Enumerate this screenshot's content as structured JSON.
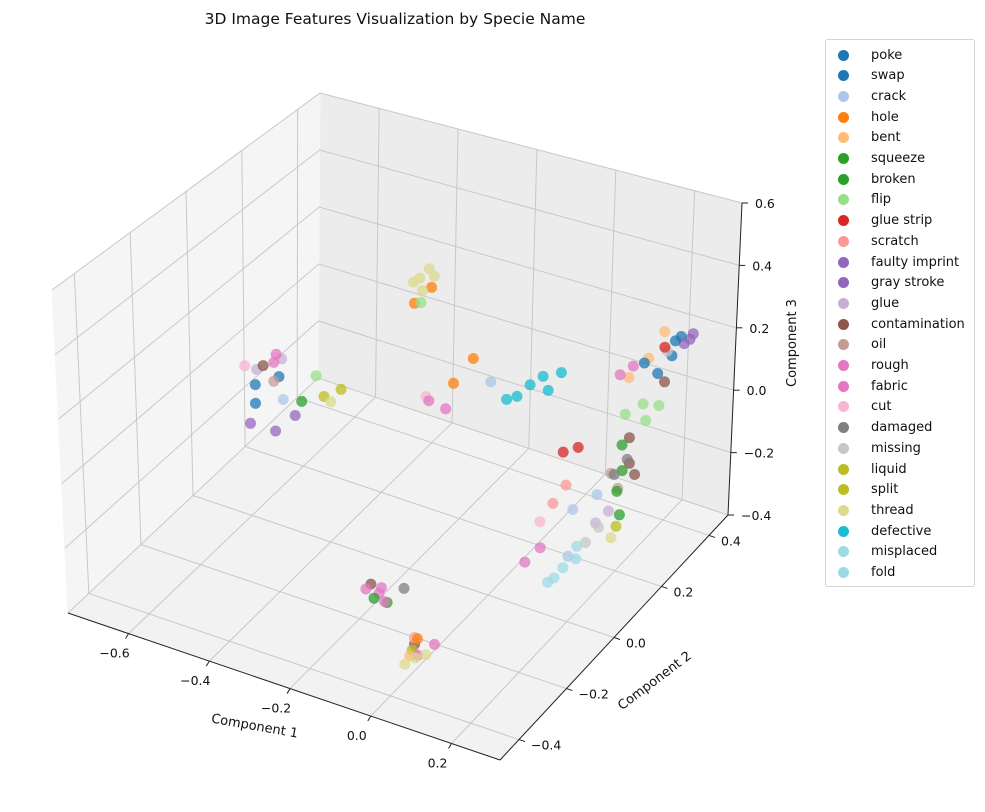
{
  "chart_data": {
    "type": "scatter",
    "dimensions": 3,
    "title": "3D Image Features Visualization by Specie Name",
    "xlabel": "Component 1",
    "ylabel": "Component 2",
    "zlabel": "Component 3",
    "xlim": [
      -0.75,
      0.32
    ],
    "ylim": [
      -0.48,
      0.48
    ],
    "zlim": [
      -0.4,
      0.6
    ],
    "x_ticks": [
      -0.6,
      -0.4,
      -0.2,
      0.0,
      0.2
    ],
    "y_ticks": [
      -0.4,
      -0.2,
      0.0,
      0.2,
      0.4
    ],
    "z_ticks": [
      -0.4,
      -0.2,
      0.0,
      0.2,
      0.4,
      0.6
    ],
    "x_tick_labels": [
      "−0.6",
      "−0.4",
      "−0.2",
      "0.0",
      "0.2"
    ],
    "y_tick_labels": [
      "−0.4",
      "−0.2",
      "0.0",
      "0.2",
      "0.4"
    ],
    "z_tick_labels": [
      "−0.4",
      "−0.2",
      "0.0",
      "0.2",
      "0.4",
      "0.6"
    ],
    "grid": true,
    "legend_position": "right, outside plot",
    "series": [
      {
        "name": "poke",
        "color": "#1f77b4",
        "points": [
          [
            -0.62,
            0.05,
            -0.02
          ],
          [
            -0.58,
            0.08,
            0.0
          ],
          [
            0.22,
            0.38,
            0.15
          ],
          [
            0.24,
            0.36,
            0.22
          ],
          [
            0.2,
            0.3,
            0.18
          ]
        ]
      },
      {
        "name": "swap",
        "color": "#1f77b4",
        "points": [
          [
            -0.6,
            0.02,
            -0.05
          ],
          [
            0.23,
            0.4,
            0.2
          ],
          [
            0.21,
            0.34,
            0.12
          ]
        ]
      },
      {
        "name": "crack",
        "color": "#aec7e8",
        "points": [
          [
            -0.55,
            0.05,
            -0.04
          ],
          [
            -0.2,
            0.32,
            -0.05
          ],
          [
            0.12,
            0.15,
            -0.2
          ],
          [
            0.15,
            0.2,
            -0.18
          ],
          [
            0.14,
            0.1,
            -0.3
          ]
        ]
      },
      {
        "name": "hole",
        "color": "#ff7f0e",
        "points": [
          [
            -0.45,
            0.4,
            0.05
          ],
          [
            -0.42,
            0.42,
            0.1
          ],
          [
            -0.25,
            0.25,
            -0.02
          ],
          [
            -0.22,
            0.28,
            0.05
          ],
          [
            0.0,
            -0.3,
            -0.3
          ],
          [
            0.02,
            -0.32,
            -0.28
          ]
        ]
      },
      {
        "name": "bent",
        "color": "#ffbb78",
        "points": [
          [
            0.18,
            0.35,
            0.15
          ],
          [
            0.15,
            0.32,
            0.1
          ],
          [
            0.2,
            0.38,
            0.22
          ],
          [
            0.0,
            -0.32,
            -0.34
          ]
        ]
      },
      {
        "name": "squeeze",
        "color": "#2ca02c",
        "points": [
          [
            -0.55,
            0.12,
            -0.1
          ],
          [
            -0.1,
            -0.3,
            -0.22
          ],
          [
            0.18,
            0.25,
            -0.05
          ],
          [
            0.2,
            0.2,
            -0.15
          ]
        ]
      },
      {
        "name": "broken",
        "color": "#2ca02c",
        "points": [
          [
            -0.08,
            -0.28,
            -0.24
          ],
          [
            0.2,
            0.22,
            -0.1
          ],
          [
            0.22,
            0.18,
            -0.2
          ]
        ]
      },
      {
        "name": "flip",
        "color": "#98df8a",
        "points": [
          [
            -0.42,
            0.38,
            0.08
          ],
          [
            0.2,
            0.3,
            0.05
          ],
          [
            0.22,
            0.28,
            0.02
          ],
          [
            0.18,
            0.26,
            0.04
          ],
          [
            0.24,
            0.3,
            0.06
          ],
          [
            -0.5,
            0.1,
            0.02
          ]
        ]
      },
      {
        "name": "glue strip",
        "color": "#d62728",
        "points": [
          [
            0.1,
            0.2,
            -0.05
          ],
          [
            0.05,
            0.22,
            -0.1
          ],
          [
            0.22,
            0.35,
            0.2
          ]
        ]
      },
      {
        "name": "scratch",
        "color": "#ff9896",
        "points": [
          [
            0.12,
            0.12,
            -0.1
          ],
          [
            0.1,
            0.1,
            -0.15
          ],
          [
            0.0,
            -0.3,
            -0.35
          ]
        ]
      },
      {
        "name": "faulty imprint",
        "color": "#9467bd",
        "points": [
          [
            -0.6,
            0.0,
            -0.1
          ],
          [
            -0.52,
            0.05,
            -0.08
          ],
          [
            0.26,
            0.4,
            0.22
          ],
          [
            0.24,
            0.42,
            0.18
          ]
        ]
      },
      {
        "name": "gray stroke",
        "color": "#9467bd",
        "points": [
          [
            -0.55,
            0.02,
            -0.12
          ],
          [
            0.25,
            0.38,
            0.2
          ]
        ]
      },
      {
        "name": "glue",
        "color": "#c5b0d5",
        "points": [
          [
            -0.65,
            0.1,
            -0.02
          ],
          [
            -0.6,
            0.12,
            0.02
          ],
          [
            0.18,
            0.2,
            -0.22
          ],
          [
            0.16,
            0.18,
            -0.25
          ]
        ]
      },
      {
        "name": "contamination",
        "color": "#8c564b",
        "points": [
          [
            -0.62,
            0.08,
            0.02
          ],
          [
            -0.12,
            -0.28,
            -0.2
          ],
          [
            0.2,
            0.25,
            -0.1
          ],
          [
            0.22,
            0.24,
            -0.12
          ],
          [
            0.18,
            0.28,
            -0.05
          ],
          [
            0.24,
            0.32,
            0.12
          ],
          [
            0.0,
            -0.3,
            -0.32
          ]
        ]
      },
      {
        "name": "oil",
        "color": "#c49c94",
        "points": [
          [
            -0.58,
            0.06,
            0.0
          ],
          [
            0.16,
            0.24,
            -0.14
          ],
          [
            0.19,
            0.22,
            -0.16
          ]
        ]
      },
      {
        "name": "rough",
        "color": "#e377c2",
        "points": [
          [
            -0.6,
            0.1,
            0.05
          ],
          [
            -0.25,
            0.22,
            -0.08
          ],
          [
            -0.1,
            -0.28,
            -0.22
          ],
          [
            -0.12,
            -0.3,
            -0.2
          ],
          [
            -0.08,
            -0.29,
            -0.23
          ],
          [
            0.14,
            0.3,
            0.12
          ],
          [
            0.1,
            0.05,
            -0.25
          ],
          [
            0.05,
            -0.3,
            -0.3
          ]
        ]
      },
      {
        "name": "fabric",
        "color": "#e377c2",
        "points": [
          [
            -0.62,
            0.12,
            0.0
          ],
          [
            -0.28,
            0.2,
            -0.05
          ],
          [
            -0.1,
            -0.27,
            -0.21
          ],
          [
            0.16,
            0.32,
            0.14
          ],
          [
            0.08,
            0.02,
            -0.28
          ],
          [
            0.02,
            -0.32,
            -0.33
          ]
        ]
      },
      {
        "name": "cut",
        "color": "#f7b6d2",
        "points": [
          [
            -0.68,
            0.1,
            -0.02
          ],
          [
            -0.3,
            0.22,
            -0.06
          ],
          [
            0.08,
            0.08,
            -0.2
          ],
          [
            0.0,
            -0.3,
            -0.3
          ]
        ]
      },
      {
        "name": "damaged",
        "color": "#7f7f7f",
        "points": [
          [
            -0.05,
            -0.26,
            -0.2
          ],
          [
            0.2,
            0.24,
            -0.08
          ],
          [
            0.18,
            0.22,
            -0.12
          ]
        ]
      },
      {
        "name": "missing",
        "color": "#c7c7c7",
        "points": [
          [
            0.22,
            0.36,
            0.18
          ],
          [
            0.16,
            0.14,
            -0.28
          ],
          [
            0.18,
            0.16,
            -0.24
          ]
        ]
      },
      {
        "name": "liquid",
        "color": "#bcbd22",
        "points": [
          [
            -0.48,
            0.1,
            -0.04
          ],
          [
            0.2,
            0.2,
            -0.26
          ]
        ]
      },
      {
        "name": "split",
        "color": "#bcbd22",
        "points": [
          [
            -0.45,
            0.12,
            -0.02
          ],
          [
            0.0,
            -0.31,
            -0.33
          ]
        ]
      },
      {
        "name": "thread",
        "color": "#dbdb8d",
        "points": [
          [
            -0.45,
            0.42,
            0.12
          ],
          [
            -0.43,
            0.4,
            0.1
          ],
          [
            -0.44,
            0.44,
            0.14
          ],
          [
            -0.46,
            0.41,
            0.11
          ],
          [
            -0.42,
            0.43,
            0.13
          ],
          [
            0.02,
            -0.33,
            -0.33
          ],
          [
            0.0,
            -0.34,
            -0.35
          ],
          [
            0.04,
            -0.32,
            -0.32
          ],
          [
            0.2,
            0.18,
            -0.28
          ],
          [
            -0.45,
            0.08,
            -0.03
          ]
        ]
      },
      {
        "name": "defective",
        "color": "#17becf",
        "points": [
          [
            -0.12,
            0.3,
            -0.05
          ],
          [
            -0.1,
            0.32,
            -0.02
          ],
          [
            -0.08,
            0.34,
            0.0
          ],
          [
            -0.06,
            0.33,
            -0.03
          ],
          [
            -0.14,
            0.29,
            -0.06
          ],
          [
            -0.04,
            0.35,
            0.02
          ]
        ]
      },
      {
        "name": "misplaced",
        "color": "#9edae5",
        "points": [
          [
            0.14,
            0.08,
            -0.32
          ],
          [
            0.12,
            0.05,
            -0.35
          ],
          [
            0.16,
            0.1,
            -0.3
          ]
        ]
      },
      {
        "name": "fold",
        "color": "#9edae5",
        "points": [
          [
            0.13,
            0.06,
            -0.34
          ],
          [
            0.15,
            0.12,
            -0.28
          ]
        ]
      }
    ]
  }
}
